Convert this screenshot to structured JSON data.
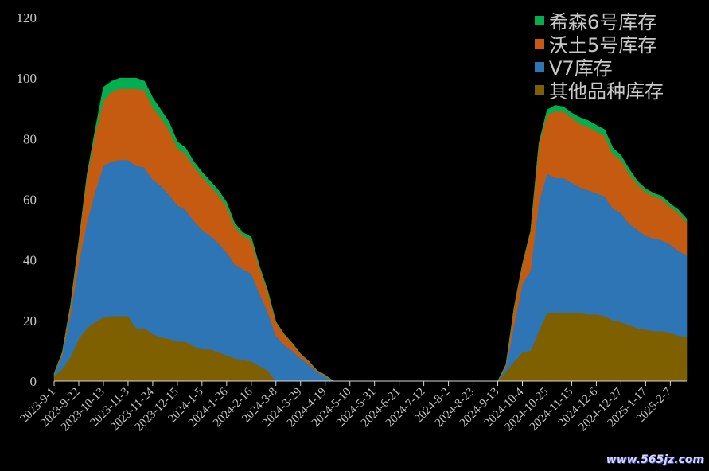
{
  "chart_data": {
    "type": "area",
    "stacked": true,
    "ylim": [
      0,
      120
    ],
    "yticks": [
      0,
      20,
      40,
      60,
      80,
      100,
      120
    ],
    "xticks": [
      "2023-9-1",
      "2023-9-22",
      "2023-10-13",
      "2023-11-3",
      "2023-11-24",
      "2023-12-15",
      "2024-1-5",
      "2024-1-26",
      "2024-2-16",
      "2024-3-8",
      "2024-3-29",
      "2024-4-19",
      "2024-5-10",
      "2024-5-31",
      "2024-6-21",
      "2024-7-12",
      "2024-8-2",
      "2024-8-23",
      "2024-9-13",
      "2024-10-4",
      "2024-10-25",
      "2024-11-15",
      "2024-12-6",
      "2024-12-27",
      "2025-1-17",
      "2025-2-7"
    ],
    "legend_position": "top-right",
    "grid": false,
    "series": [
      {
        "name": "其他品种库存",
        "color": "#7f6000",
        "points": [
          {
            "week": 0,
            "value": 1.5
          },
          {
            "week": 1,
            "value": 4
          },
          {
            "week": 2,
            "value": 8
          },
          {
            "week": 3,
            "value": 14
          },
          {
            "week": 4,
            "value": 17.5
          },
          {
            "week": 5,
            "value": 19.5
          },
          {
            "week": 6,
            "value": 21
          },
          {
            "week": 7,
            "value": 21.5
          },
          {
            "week": 8,
            "value": 21.5
          },
          {
            "week": 9,
            "value": 21.5
          },
          {
            "week": 10,
            "value": 17.5
          },
          {
            "week": 11,
            "value": 17.5
          },
          {
            "week": 12,
            "value": 15.5
          },
          {
            "week": 13,
            "value": 14.5
          },
          {
            "week": 14,
            "value": 14
          },
          {
            "week": 15,
            "value": 13
          },
          {
            "week": 16,
            "value": 13
          },
          {
            "week": 17,
            "value": 11.5
          },
          {
            "week": 18,
            "value": 10.5
          },
          {
            "week": 19,
            "value": 10.5
          },
          {
            "week": 20,
            "value": 9.5
          },
          {
            "week": 21,
            "value": 8.5
          },
          {
            "week": 22,
            "value": 7.5
          },
          {
            "week": 23,
            "value": 7
          },
          {
            "week": 24,
            "value": 6.5
          },
          {
            "week": 25,
            "value": 5
          },
          {
            "week": 26,
            "value": 3.5
          },
          {
            "week": 27,
            "value": 0
          },
          {
            "week": 28,
            "value": 0
          },
          {
            "week": 29,
            "value": 0
          },
          {
            "week": 30,
            "value": 0
          },
          {
            "week": 31,
            "value": 0
          },
          {
            "week": 32,
            "value": 0
          },
          {
            "week": 33,
            "value": 0
          },
          {
            "week": 54,
            "value": 0
          },
          {
            "week": 55,
            "value": 3
          },
          {
            "week": 56,
            "value": 6.5
          },
          {
            "week": 57,
            "value": 9.5
          },
          {
            "week": 58,
            "value": 10
          },
          {
            "week": 59,
            "value": 16.5
          },
          {
            "week": 60,
            "value": 22.5
          },
          {
            "week": 61,
            "value": 22.5
          },
          {
            "week": 62,
            "value": 22.5
          },
          {
            "week": 63,
            "value": 22.5
          },
          {
            "week": 64,
            "value": 22.5
          },
          {
            "week": 65,
            "value": 22
          },
          {
            "week": 66,
            "value": 22
          },
          {
            "week": 67,
            "value": 21.5
          },
          {
            "week": 68,
            "value": 20
          },
          {
            "week": 69,
            "value": 19.5
          },
          {
            "week": 70,
            "value": 18.5
          },
          {
            "week": 71,
            "value": 17.5
          },
          {
            "week": 72,
            "value": 17
          },
          {
            "week": 73,
            "value": 16.5
          },
          {
            "week": 74,
            "value": 16.5
          },
          {
            "week": 75,
            "value": 16
          },
          {
            "week": 76,
            "value": 15
          },
          {
            "week": 77,
            "value": 14.5
          }
        ]
      },
      {
        "name": "V7库存",
        "color": "#2e75b6",
        "points": [
          {
            "week": 0,
            "value": 0.5
          },
          {
            "week": 1,
            "value": 4.5
          },
          {
            "week": 2,
            "value": 14
          },
          {
            "week": 3,
            "value": 25
          },
          {
            "week": 4,
            "value": 35
          },
          {
            "week": 5,
            "value": 43
          },
          {
            "week": 6,
            "value": 50
          },
          {
            "week": 7,
            "value": 51
          },
          {
            "week": 8,
            "value": 51.5
          },
          {
            "week": 9,
            "value": 51.5
          },
          {
            "week": 10,
            "value": 53.5
          },
          {
            "week": 11,
            "value": 53
          },
          {
            "week": 12,
            "value": 51
          },
          {
            "week": 13,
            "value": 50
          },
          {
            "week": 14,
            "value": 47.5
          },
          {
            "week": 15,
            "value": 45
          },
          {
            "week": 16,
            "value": 43.5
          },
          {
            "week": 17,
            "value": 41.5
          },
          {
            "week": 18,
            "value": 39.5
          },
          {
            "week": 19,
            "value": 37.5
          },
          {
            "week": 20,
            "value": 36
          },
          {
            "week": 21,
            "value": 34
          },
          {
            "week": 22,
            "value": 31
          },
          {
            "week": 23,
            "value": 30
          },
          {
            "week": 24,
            "value": 29
          },
          {
            "week": 25,
            "value": 24
          },
          {
            "week": 26,
            "value": 19.5
          },
          {
            "week": 27,
            "value": 15
          },
          {
            "week": 28,
            "value": 12
          },
          {
            "week": 29,
            "value": 10
          },
          {
            "week": 30,
            "value": 7.5
          },
          {
            "week": 31,
            "value": 5.5
          },
          {
            "week": 32,
            "value": 3
          },
          {
            "week": 33,
            "value": 1.5
          },
          {
            "week": 34,
            "value": 0
          },
          {
            "week": 54,
            "value": 0
          },
          {
            "week": 55,
            "value": 1.5
          },
          {
            "week": 56,
            "value": 12
          },
          {
            "week": 57,
            "value": 22.5
          },
          {
            "week": 58,
            "value": 26.5
          },
          {
            "week": 59,
            "value": 42.5
          },
          {
            "week": 60,
            "value": 46
          },
          {
            "week": 61,
            "value": 44.5
          },
          {
            "week": 62,
            "value": 44.5
          },
          {
            "week": 63,
            "value": 43
          },
          {
            "week": 64,
            "value": 41.5
          },
          {
            "week": 65,
            "value": 41
          },
          {
            "week": 66,
            "value": 40
          },
          {
            "week": 67,
            "value": 39.5
          },
          {
            "week": 68,
            "value": 37
          },
          {
            "week": 69,
            "value": 36
          },
          {
            "week": 70,
            "value": 33.5
          },
          {
            "week": 71,
            "value": 32.5
          },
          {
            "week": 72,
            "value": 31
          },
          {
            "week": 73,
            "value": 30.5
          },
          {
            "week": 74,
            "value": 30
          },
          {
            "week": 75,
            "value": 29
          },
          {
            "week": 76,
            "value": 28
          },
          {
            "week": 77,
            "value": 27
          }
        ]
      },
      {
        "name": "沃土5号库存",
        "color": "#c55a11",
        "points": [
          {
            "week": 0,
            "value": 0.5
          },
          {
            "week": 1,
            "value": 1
          },
          {
            "week": 2,
            "value": 3
          },
          {
            "week": 3,
            "value": 7
          },
          {
            "week": 4,
            "value": 15
          },
          {
            "week": 5,
            "value": 19
          },
          {
            "week": 6,
            "value": 21.5
          },
          {
            "week": 7,
            "value": 23
          },
          {
            "week": 8,
            "value": 23.5
          },
          {
            "week": 9,
            "value": 23.5
          },
          {
            "week": 10,
            "value": 25.5
          },
          {
            "week": 11,
            "value": 25.5
          },
          {
            "week": 12,
            "value": 24
          },
          {
            "week": 13,
            "value": 22.5
          },
          {
            "week": 14,
            "value": 21.5
          },
          {
            "week": 15,
            "value": 19
          },
          {
            "week": 16,
            "value": 18.5
          },
          {
            "week": 17,
            "value": 18
          },
          {
            "week": 18,
            "value": 17.5
          },
          {
            "week": 19,
            "value": 16.5
          },
          {
            "week": 20,
            "value": 16
          },
          {
            "week": 21,
            "value": 15
          },
          {
            "week": 22,
            "value": 12.5
          },
          {
            "week": 23,
            "value": 11
          },
          {
            "week": 24,
            "value": 11
          },
          {
            "week": 25,
            "value": 8.5
          },
          {
            "week": 26,
            "value": 6.5
          },
          {
            "week": 27,
            "value": 4.5
          },
          {
            "week": 28,
            "value": 3.5
          },
          {
            "week": 29,
            "value": 2.5
          },
          {
            "week": 30,
            "value": 1.5
          },
          {
            "week": 31,
            "value": 1
          },
          {
            "week": 32,
            "value": 0.5
          },
          {
            "week": 33,
            "value": 0.5
          },
          {
            "week": 34,
            "value": 0
          },
          {
            "week": 54,
            "value": 0
          },
          {
            "week": 55,
            "value": 1
          },
          {
            "week": 56,
            "value": 6
          },
          {
            "week": 57,
            "value": 6.5
          },
          {
            "week": 58,
            "value": 13
          },
          {
            "week": 59,
            "value": 19
          },
          {
            "week": 60,
            "value": 19.5
          },
          {
            "week": 61,
            "value": 22
          },
          {
            "week": 62,
            "value": 22
          },
          {
            "week": 63,
            "value": 21.5
          },
          {
            "week": 64,
            "value": 21
          },
          {
            "week": 65,
            "value": 21
          },
          {
            "week": 66,
            "value": 20.5
          },
          {
            "week": 67,
            "value": 20
          },
          {
            "week": 68,
            "value": 18
          },
          {
            "week": 69,
            "value": 17.5
          },
          {
            "week": 70,
            "value": 16.5
          },
          {
            "week": 71,
            "value": 15
          },
          {
            "week": 72,
            "value": 14.5
          },
          {
            "week": 73,
            "value": 14
          },
          {
            "week": 74,
            "value": 13.5
          },
          {
            "week": 75,
            "value": 12.5
          },
          {
            "week": 76,
            "value": 12.5
          },
          {
            "week": 77,
            "value": 11
          }
        ]
      },
      {
        "name": "希森6号库存",
        "color": "#00b050",
        "points": [
          {
            "week": 0,
            "value": 0
          },
          {
            "week": 1,
            "value": 0
          },
          {
            "week": 2,
            "value": 0
          },
          {
            "week": 3,
            "value": 0
          },
          {
            "week": 4,
            "value": 0.5
          },
          {
            "week": 5,
            "value": 1.5
          },
          {
            "week": 6,
            "value": 4.5
          },
          {
            "week": 7,
            "value": 3.5
          },
          {
            "week": 8,
            "value": 3.5
          },
          {
            "week": 9,
            "value": 3.5
          },
          {
            "week": 10,
            "value": 3.5
          },
          {
            "week": 11,
            "value": 3
          },
          {
            "week": 12,
            "value": 3
          },
          {
            "week": 13,
            "value": 2.5
          },
          {
            "week": 14,
            "value": 2.5
          },
          {
            "week": 15,
            "value": 2
          },
          {
            "week": 16,
            "value": 2
          },
          {
            "week": 17,
            "value": 1.5
          },
          {
            "week": 18,
            "value": 1.5
          },
          {
            "week": 19,
            "value": 1.5
          },
          {
            "week": 20,
            "value": 1.5
          },
          {
            "week": 21,
            "value": 1.5
          },
          {
            "week": 22,
            "value": 1
          },
          {
            "week": 23,
            "value": 1
          },
          {
            "week": 24,
            "value": 1
          },
          {
            "week": 25,
            "value": 0.5
          },
          {
            "week": 26,
            "value": 0.5
          },
          {
            "week": 27,
            "value": 0
          },
          {
            "week": 28,
            "value": 0
          },
          {
            "week": 29,
            "value": 0
          },
          {
            "week": 30,
            "value": 0
          },
          {
            "week": 31,
            "value": 0
          },
          {
            "week": 32,
            "value": 0
          },
          {
            "week": 33,
            "value": 0
          },
          {
            "week": 34,
            "value": 0
          },
          {
            "week": 54,
            "value": 0
          },
          {
            "week": 55,
            "value": 0
          },
          {
            "week": 56,
            "value": 0
          },
          {
            "week": 57,
            "value": 0
          },
          {
            "week": 58,
            "value": 0
          },
          {
            "week": 59,
            "value": 0.5
          },
          {
            "week": 60,
            "value": 1.5
          },
          {
            "week": 61,
            "value": 2
          },
          {
            "week": 62,
            "value": 1.5
          },
          {
            "week": 63,
            "value": 1.5
          },
          {
            "week": 64,
            "value": 2
          },
          {
            "week": 65,
            "value": 2
          },
          {
            "week": 66,
            "value": 2
          },
          {
            "week": 67,
            "value": 2
          },
          {
            "week": 68,
            "value": 2
          },
          {
            "week": 69,
            "value": 1.5
          },
          {
            "week": 70,
            "value": 1.5
          },
          {
            "week": 71,
            "value": 1
          },
          {
            "week": 72,
            "value": 1
          },
          {
            "week": 73,
            "value": 1
          },
          {
            "week": 74,
            "value": 1
          },
          {
            "week": 75,
            "value": 1
          },
          {
            "week": 76,
            "value": 1
          },
          {
            "week": 77,
            "value": 1
          }
        ]
      }
    ]
  },
  "legend": [
    "希森6号库存",
    "沃土5号库存",
    "V7库存",
    "其他品种库存"
  ],
  "watermark": "www.565jz.com"
}
